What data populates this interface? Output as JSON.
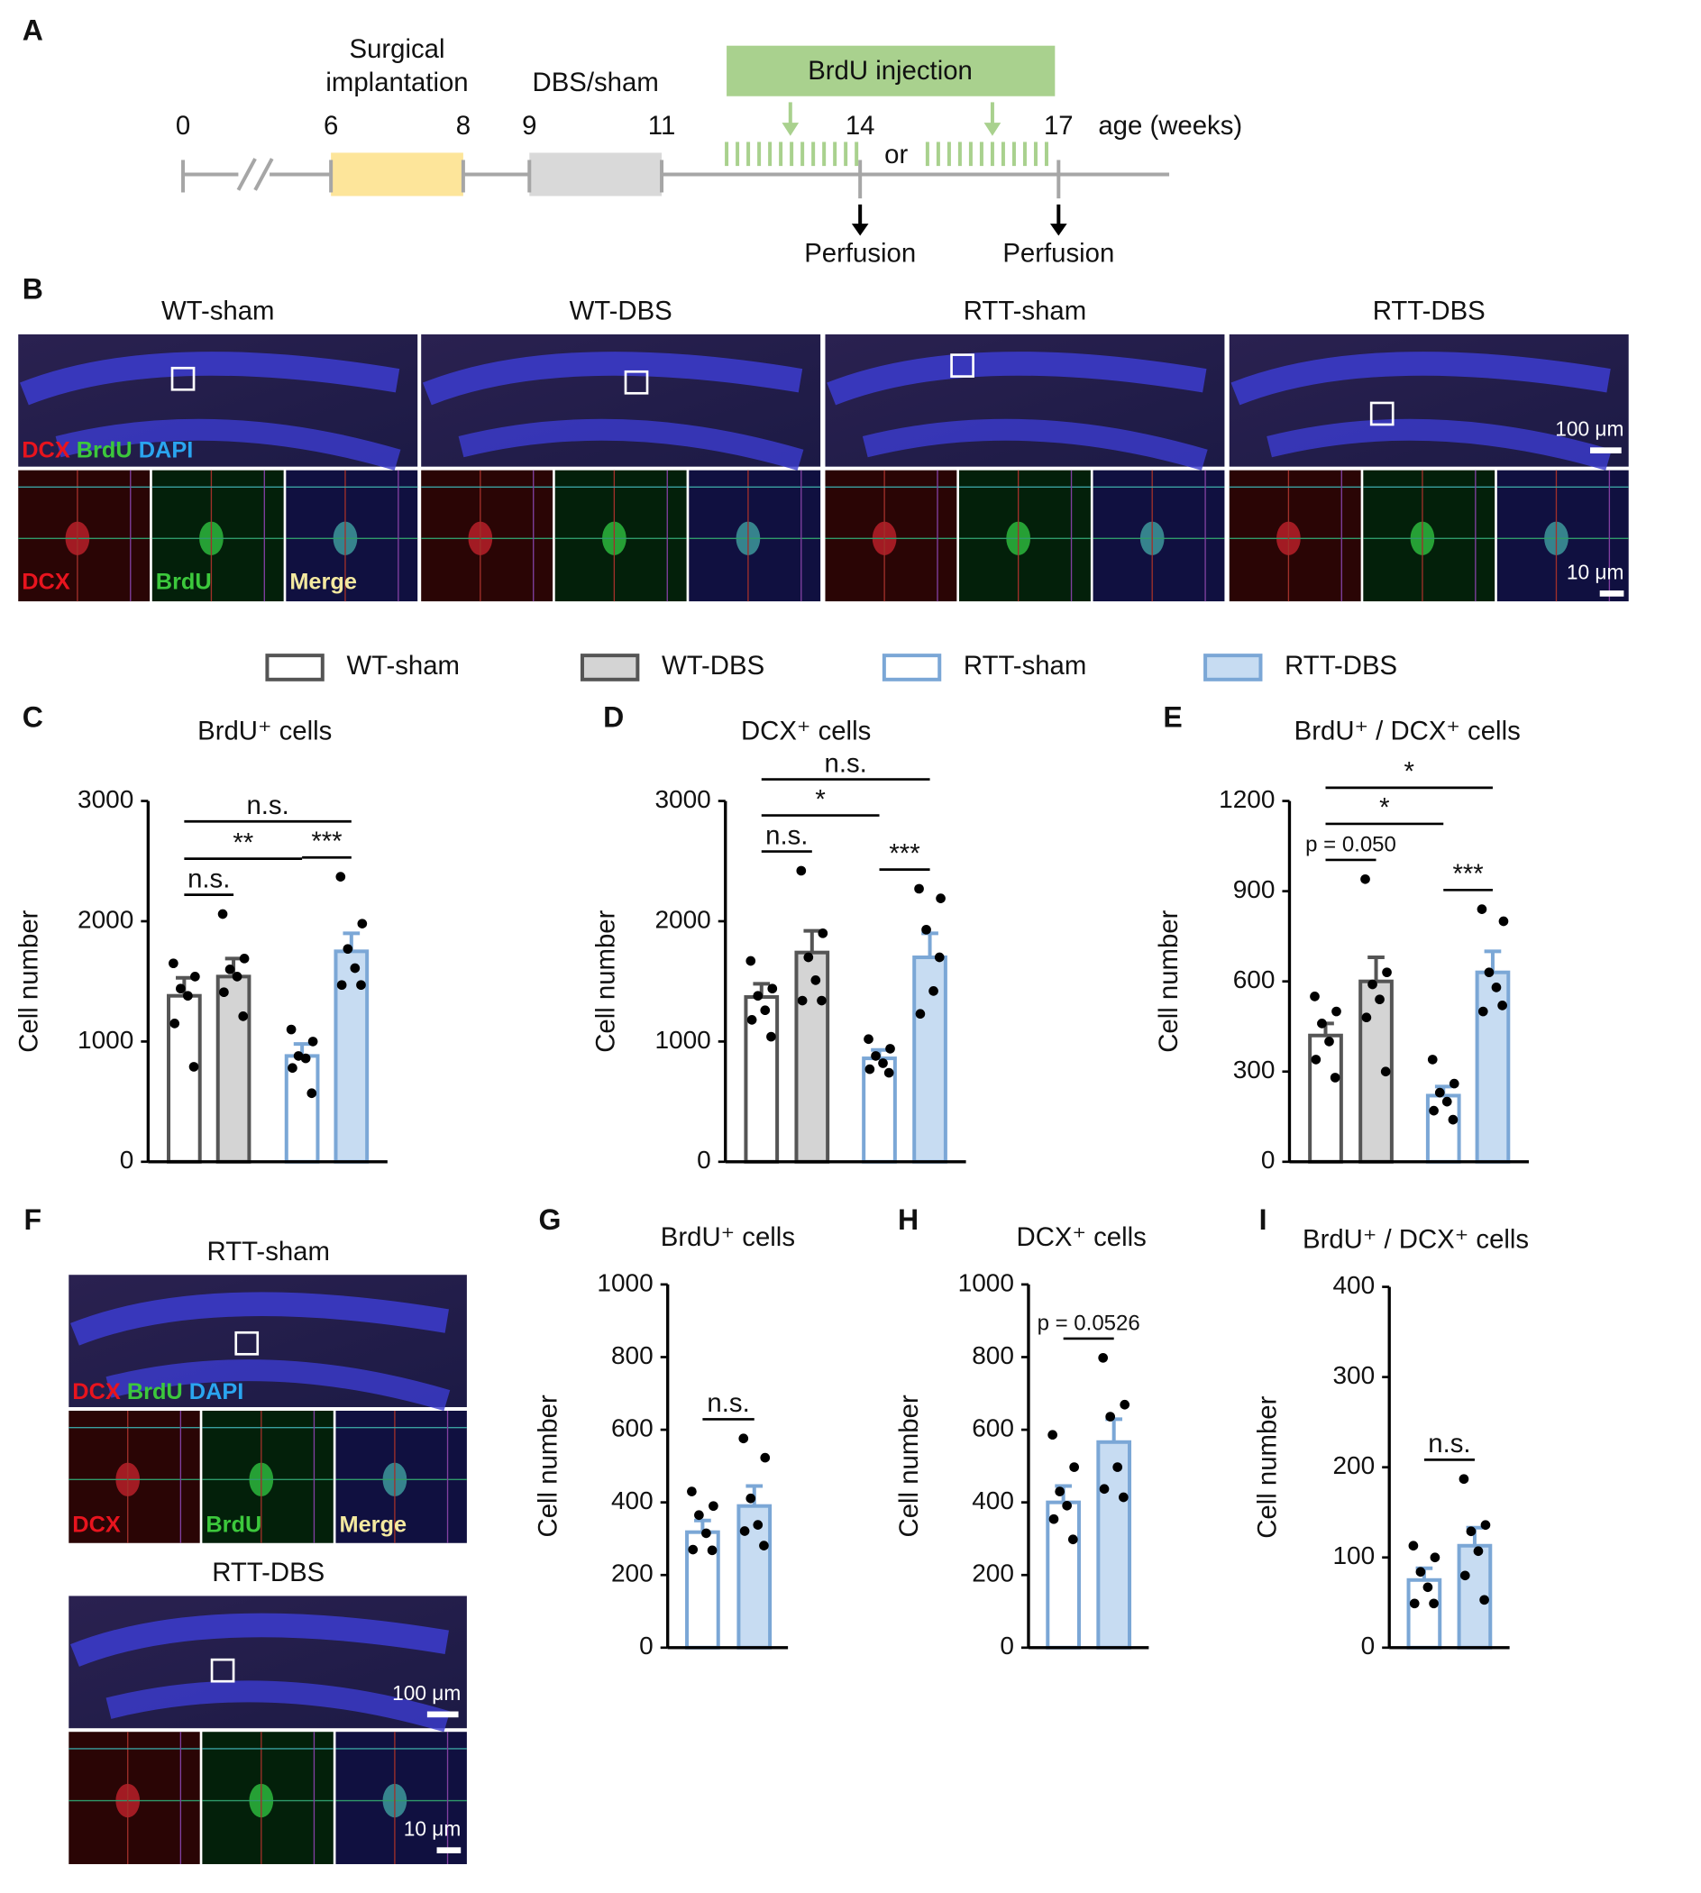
{
  "panel_labels": [
    "A",
    "B",
    "C",
    "D",
    "E",
    "F",
    "G",
    "H",
    "I"
  ],
  "timeline": {
    "weeks": [
      0,
      6,
      8,
      9,
      11,
      14,
      17
    ],
    "axis_label": "age (weeks)",
    "or": "or",
    "surgery": [
      "Surgical",
      "implantation"
    ],
    "dbs": "DBS/sham",
    "brdu": "BrdU injection",
    "perfusion": [
      "Perfusion",
      "Perfusion"
    ]
  },
  "panel_b": {
    "groups": [
      "WT-sham",
      "WT-DBS",
      "RTT-sham",
      "RTT-DBS"
    ],
    "stains": [
      "DCX",
      "BrdU",
      "DAPI"
    ],
    "merge": "Merge",
    "scale_large": "100 μm",
    "scale_small": "10 μm"
  },
  "panel_f": {
    "groups": [
      "RTT-sham",
      "RTT-DBS"
    ],
    "stains": [
      "DCX",
      "BrdU",
      "DAPI"
    ],
    "merge": "Merge",
    "scale_large": "100 μm",
    "scale_small": "10 μm"
  },
  "legend": [
    {
      "name": "WT-sham",
      "fill": "#ffffff",
      "stroke": "#555555"
    },
    {
      "name": "WT-DBS",
      "fill": "#d4d4d4",
      "stroke": "#555555"
    },
    {
      "name": "RTT-sham",
      "fill": "#ffffff",
      "stroke": "#7ba7d6"
    },
    {
      "name": "RTT-DBS",
      "fill": "#c7dcf2",
      "stroke": "#7ba7d6"
    }
  ],
  "chart_data": [
    {
      "type": "bar",
      "title": "BrdU⁺ cells",
      "ylabel": "Cell number",
      "ylim": [
        0,
        3000
      ],
      "yticks": [
        0,
        1000,
        2000,
        3000
      ],
      "values": [
        1380,
        1540,
        880,
        1750
      ],
      "errors": [
        150,
        150,
        100,
        150
      ],
      "points": [
        [
          1650,
          1540,
          1440,
          1380,
          1150,
          790
        ],
        [
          2060,
          1690,
          1600,
          1540,
          1410,
          1210
        ],
        [
          1100,
          1000,
          880,
          860,
          780,
          570
        ],
        [
          2370,
          1980,
          1770,
          1610,
          1470,
          1470
        ]
      ],
      "fills": [
        "#ffffff",
        "#d4d4d4",
        "#ffffff",
        "#c7dcf2"
      ],
      "strokes": [
        "#555555",
        "#555555",
        "#7ba7d6",
        "#7ba7d6"
      ],
      "annotations": [
        {
          "text": "n.s.",
          "from": 0,
          "to": 1
        },
        {
          "text": "**",
          "from": 0,
          "to": 2
        },
        {
          "text": "***",
          "from": 2,
          "to": 3
        },
        {
          "text": "n.s.",
          "from": 0,
          "to": 3
        }
      ]
    },
    {
      "type": "bar",
      "title": "DCX⁺ cells",
      "ylabel": "Cell number",
      "ylim": [
        0,
        3000
      ],
      "yticks": [
        0,
        1000,
        2000,
        3000
      ],
      "values": [
        1370,
        1740,
        860,
        1700
      ],
      "errors": [
        110,
        180,
        70,
        200
      ],
      "points": [
        [
          1670,
          1440,
          1380,
          1260,
          1180,
          1040
        ],
        [
          2420,
          1900,
          1700,
          1510,
          1340,
          1340
        ],
        [
          1020,
          940,
          880,
          820,
          770,
          740
        ],
        [
          2270,
          2190,
          1930,
          1420,
          1230,
          1700
        ]
      ],
      "fills": [
        "#ffffff",
        "#d4d4d4",
        "#ffffff",
        "#c7dcf2"
      ],
      "strokes": [
        "#555555",
        "#555555",
        "#7ba7d6",
        "#7ba7d6"
      ],
      "annotations": [
        {
          "text": "n.s.",
          "from": 0,
          "to": 1
        },
        {
          "text": "*",
          "from": 0,
          "to": 2
        },
        {
          "text": "***",
          "from": 2,
          "to": 3
        },
        {
          "text": "n.s.",
          "from": 0,
          "to": 3
        }
      ]
    },
    {
      "type": "bar",
      "title": "BrdU⁺ / DCX⁺ cells",
      "ylabel": "Cell number",
      "ylim": [
        0,
        1200
      ],
      "yticks": [
        0,
        300,
        600,
        900,
        1200
      ],
      "values": [
        420,
        600,
        220,
        630
      ],
      "errors": [
        40,
        80,
        30,
        70
      ],
      "points": [
        [
          550,
          500,
          460,
          400,
          340,
          280
        ],
        [
          940,
          630,
          590,
          540,
          480,
          300
        ],
        [
          340,
          260,
          230,
          200,
          170,
          140
        ],
        [
          840,
          800,
          630,
          580,
          500,
          520
        ]
      ],
      "fills": [
        "#ffffff",
        "#d4d4d4",
        "#ffffff",
        "#c7dcf2"
      ],
      "strokes": [
        "#555555",
        "#555555",
        "#7ba7d6",
        "#7ba7d6"
      ],
      "annotations": [
        {
          "text": "p = 0.050",
          "from": 0,
          "to": 1
        },
        {
          "text": "*",
          "from": 0,
          "to": 2
        },
        {
          "text": "***",
          "from": 2,
          "to": 3
        },
        {
          "text": "*",
          "from": 0,
          "to": 3
        }
      ]
    },
    {
      "type": "bar",
      "title": "BrdU⁺ cells",
      "ylabel": "Cell number",
      "ylim": [
        0,
        1000
      ],
      "yticks": [
        0,
        200,
        400,
        600,
        800,
        1000
      ],
      "values": [
        318,
        390
      ],
      "errors": [
        32,
        55
      ],
      "points": [
        [
          430,
          390,
          365,
          315,
          270,
          268
        ],
        [
          576,
          523,
          411,
          338,
          321,
          281
        ]
      ],
      "fills": [
        "#ffffff",
        "#c7dcf2"
      ],
      "strokes": [
        "#7ba7d6",
        "#7ba7d6"
      ],
      "annotations": [
        {
          "text": "n.s.",
          "from": 0,
          "to": 1
        }
      ]
    },
    {
      "type": "bar",
      "title": "DCX⁺ cells",
      "ylabel": "Cell number",
      "ylim": [
        0,
        1000
      ],
      "yticks": [
        0,
        200,
        400,
        600,
        800,
        1000
      ],
      "values": [
        400,
        566
      ],
      "errors": [
        45,
        63
      ],
      "points": [
        [
          586,
          497,
          430,
          391,
          354,
          298
        ],
        [
          798,
          669,
          636,
          497,
          437,
          414
        ]
      ],
      "fills": [
        "#ffffff",
        "#c7dcf2"
      ],
      "strokes": [
        "#7ba7d6",
        "#7ba7d6"
      ],
      "annotations": [
        {
          "text": "p = 0.0526",
          "from": 0,
          "to": 1
        }
      ]
    },
    {
      "type": "bar",
      "title": "BrdU⁺ / DCX⁺ cells",
      "ylabel": "Cell number",
      "ylim": [
        0,
        400
      ],
      "yticks": [
        0,
        100,
        200,
        300,
        400
      ],
      "values": [
        75,
        113
      ],
      "errors": [
        13,
        20
      ],
      "points": [
        [
          113,
          100,
          84,
          67,
          49,
          49
        ],
        [
          187,
          136,
          129,
          107,
          80,
          53
        ]
      ],
      "fills": [
        "#ffffff",
        "#c7dcf2"
      ],
      "strokes": [
        "#7ba7d6",
        "#7ba7d6"
      ],
      "annotations": [
        {
          "text": "n.s.",
          "from": 0,
          "to": 1
        }
      ]
    }
  ]
}
